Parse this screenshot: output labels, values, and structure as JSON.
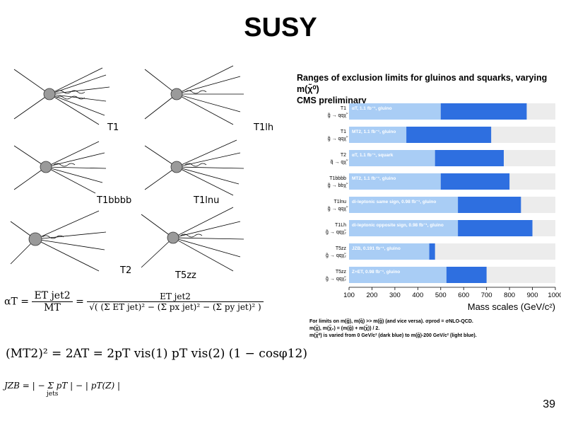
{
  "slide": {
    "title": "SUSY",
    "page_number": "39"
  },
  "diagrams": {
    "labels": [
      "T1",
      "T1lh",
      "T1bbbb",
      "T1lnu",
      "T2",
      "T5zz"
    ]
  },
  "formulas": {
    "alpha_lhs": "αT =",
    "alpha_num1": "ET jet2",
    "alpha_den1": "MT",
    "alpha_num2": "ET jet2",
    "alpha_den2": "√( (Σ ET jet)² − (Σ px jet)² − (Σ py jet)² )",
    "mt2": "(MT2)² = 2AT = 2pT vis(1) pT vis(2) (1 − cosφ12)",
    "jzb": "JZB = | − Σ pT | − | pT(Z) |",
    "jzb_sub": "jets"
  },
  "chart_header": {
    "line1": "Ranges of exclusion limits for gluinos and squarks, varying m(χ̃⁰)",
    "line2": "CMS preliminary"
  },
  "chart_notes": {
    "line1": "For limits on m(g̃), m(q̃) >> m(g̃) (and vice versa). σprod = σNLO-QCD.",
    "line2": "m(χ̃), m(χ̃₂) = (m(g̃) + m(χ̃)) / 2.",
    "line3": "m(χ̃⁰) is varied from 0 GeV/c² (dark blue) to m(g̃)-200 GeV/c² (light blue)."
  },
  "colors": {
    "dark_blue": "#2e6fe0",
    "light_blue": "#a9cdf5",
    "row_bg": "#ececec"
  },
  "chart_data": {
    "type": "bar",
    "xlabel": "Mass scales (GeV/c²)",
    "xlim": [
      100,
      1000
    ],
    "xticks": [
      100,
      200,
      300,
      400,
      500,
      600,
      700,
      800,
      900,
      1000
    ],
    "rows": [
      {
        "model": "T1",
        "process": "g̃ → qqχ̃",
        "analysis": "αT, 1.1 fb⁻¹, gluino",
        "light_start": 100,
        "dark_start": 500,
        "end": 875
      },
      {
        "model": "T1",
        "process": "g̃ → qqχ̃",
        "analysis": "MT2, 1.1 fb⁻¹, gluino",
        "light_start": 100,
        "dark_start": 350,
        "end": 720
      },
      {
        "model": "T2",
        "process": "q̃ → qχ̃",
        "analysis": "αT, 1.1 fb⁻¹, squark",
        "light_start": 100,
        "dark_start": 475,
        "end": 775
      },
      {
        "model": "T1bbbb",
        "process": "g̃ → bbχ̃",
        "analysis": "MT2, 1.1 fb⁻¹, gluino",
        "light_start": 100,
        "dark_start": 500,
        "end": 800
      },
      {
        "model": "T1lnu",
        "process": "g̃ → qqχ̃",
        "analysis": "di-leptonic same sign, 0.98 fb⁻¹, gluino",
        "light_start": 100,
        "dark_start": 575,
        "end": 850
      },
      {
        "model": "T1Lh",
        "process": "g̃ → qqχ̃₂",
        "analysis": "di-leptonic opposite sign, 0.98 fb⁻¹, gluino",
        "light_start": 100,
        "dark_start": 575,
        "end": 900
      },
      {
        "model": "T5zz",
        "process": "g̃ → qqχ̃₂",
        "analysis": "JZB, 0.191 fb⁻¹, gluino",
        "light_start": 100,
        "dark_start": 450,
        "end": 475
      },
      {
        "model": "T5zz",
        "process": "g̃ → qqχ̃₂",
        "analysis": "Z+ET, 0.98 fb⁻¹, gluino",
        "light_start": 100,
        "dark_start": 525,
        "end": 700
      }
    ]
  }
}
